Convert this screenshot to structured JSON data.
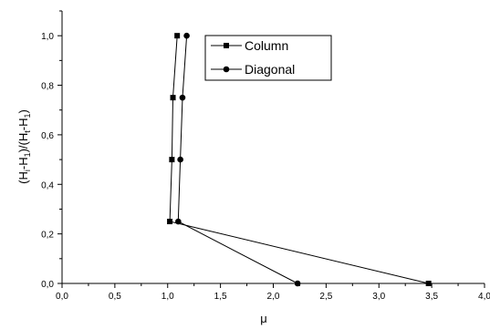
{
  "chart_data": {
    "type": "line",
    "xlabel": "μ",
    "ylabel": "(H",
    "ylabel_parts": {
      "p1": "(H",
      "s1": "i",
      "p2": "-H",
      "s2": "1",
      "p3": ")/(H",
      "s3": "t",
      "p4": "-H",
      "s4": "1",
      "p5": ")"
    },
    "xlim": [
      0,
      4
    ],
    "ylim": [
      0,
      1.1
    ],
    "x_ticks": [
      "0,0",
      "0,5",
      "1,0",
      "1,5",
      "2,0",
      "2,5",
      "3,0",
      "3,5",
      "4,0"
    ],
    "y_ticks": [
      "0,0",
      "0,2",
      "0,4",
      "0,6",
      "0,8",
      "1,0"
    ],
    "legend_position": "top-right",
    "series": [
      {
        "name": "Column",
        "marker": "square",
        "color": "#000000",
        "x": [
          3.47,
          1.02,
          1.04,
          1.05,
          1.09
        ],
        "y": [
          0.0,
          0.25,
          0.5,
          0.75,
          1.0
        ]
      },
      {
        "name": "Diagonal",
        "marker": "circle",
        "color": "#000000",
        "x": [
          2.23,
          1.1,
          1.12,
          1.14,
          1.18
        ],
        "y": [
          0.0,
          0.25,
          0.5,
          0.75,
          1.0
        ]
      }
    ]
  }
}
